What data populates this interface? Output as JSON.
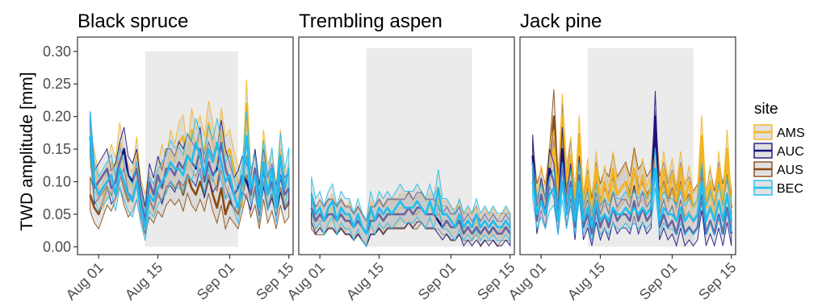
{
  "chart_data": {
    "type": "line",
    "ylabel": "TWD amplitude [mm]",
    "xlabel": "",
    "ylim": [
      -0.012,
      0.322
    ],
    "xlim": [
      "2019-07-27",
      "2019-09-16"
    ],
    "yticks": [
      0.0,
      0.05,
      0.1,
      0.15,
      0.2,
      0.25,
      0.3
    ],
    "ytick_labels": [
      "0.00",
      "0.05",
      "0.10",
      "0.15",
      "0.20",
      "0.25",
      "0.30"
    ],
    "xticks": [
      "2019-08-01",
      "2019-08-15",
      "2019-09-01",
      "2019-09-15"
    ],
    "xtick_labels": [
      "Aug 01",
      "Aug 15",
      "Sep 01",
      "Sep 15"
    ],
    "grid": false,
    "legend": {
      "title": "site",
      "position": "right",
      "entries": [
        {
          "label": "AMS",
          "color": "#F5B41E"
        },
        {
          "label": "AUC",
          "color": "#1A1382"
        },
        {
          "label": "AUS",
          "color": "#8B4A12"
        },
        {
          "label": "BEC",
          "color": "#1EBDF0"
        }
      ]
    },
    "band_fill": "#c8c8c8",
    "shade_color": "#ebebeb",
    "panels": [
      {
        "title": "Black spruce",
        "shaded_period": {
          "x": [
            "2019-08-12",
            "2019-09-03"
          ],
          "y": [
            0,
            0.3
          ]
        },
        "series": [
          {
            "name": "AMS",
            "x_start": "2019-07-30",
            "values": [
              0.15,
              0.12,
              0.09,
              0.08,
              0.1,
              0.13,
              0.11,
              0.16,
              0.12,
              0.1,
              0.09,
              0.14,
              0.08,
              0.06,
              0.09,
              0.07,
              0.1,
              0.13,
              0.11,
              0.15,
              0.13,
              0.16,
              0.17,
              0.12,
              0.18,
              0.15,
              0.17,
              0.14,
              0.19,
              0.16,
              0.12,
              0.18,
              0.14,
              0.15,
              0.12,
              0.1,
              0.08,
              0.22,
              0.09,
              0.12,
              0.07,
              0.15,
              0.1,
              0.12,
              0.07,
              0.15,
              0.09,
              0.1
            ]
          },
          {
            "name": "AUC",
            "x_start": "2019-07-30",
            "values": [
              0.17,
              0.09,
              0.1,
              0.11,
              0.12,
              0.09,
              0.1,
              0.13,
              0.15,
              0.11,
              0.1,
              0.12,
              0.07,
              0.04,
              0.1,
              0.08,
              0.11,
              0.09,
              0.12,
              0.12,
              0.11,
              0.13,
              0.12,
              0.14,
              0.13,
              0.12,
              0.15,
              0.1,
              0.13,
              0.11,
              0.12,
              0.16,
              0.12,
              0.1,
              0.08,
              0.09,
              0.11,
              0.1,
              0.08,
              0.12,
              0.07,
              0.12,
              0.08,
              0.1,
              0.07,
              0.11,
              0.08,
              0.09
            ]
          },
          {
            "name": "AUS",
            "x_start": "2019-07-30",
            "values": [
              0.08,
              0.06,
              0.05,
              0.07,
              0.09,
              0.08,
              0.1,
              0.12,
              0.09,
              0.07,
              0.08,
              0.1,
              0.06,
              0.04,
              0.07,
              0.06,
              0.08,
              0.07,
              0.09,
              0.1,
              0.09,
              0.1,
              0.08,
              0.11,
              0.09,
              0.08,
              0.1,
              0.08,
              0.11,
              0.08,
              0.06,
              0.09,
              0.05,
              0.07,
              0.06,
              0.05,
              0.08,
              0.11,
              0.07,
              0.09,
              0.05,
              0.1,
              0.06,
              0.08,
              0.05,
              0.09,
              0.06,
              0.07
            ]
          },
          {
            "name": "BEC",
            "x_start": "2019-07-30",
            "values": [
              0.17,
              0.1,
              0.08,
              0.09,
              0.1,
              0.11,
              0.08,
              0.12,
              0.1,
              0.08,
              0.07,
              0.1,
              0.06,
              0.03,
              0.08,
              0.07,
              0.09,
              0.1,
              0.11,
              0.13,
              0.12,
              0.12,
              0.11,
              0.14,
              0.13,
              0.16,
              0.14,
              0.11,
              0.15,
              0.13,
              0.16,
              0.13,
              0.1,
              0.11,
              0.08,
              0.06,
              0.1,
              0.17,
              0.09,
              0.11,
              0.06,
              0.13,
              0.08,
              0.12,
              0.06,
              0.14,
              0.09,
              0.12
            ]
          }
        ]
      },
      {
        "title": "Trembling aspen",
        "shaded_period": {
          "x": [
            "2019-08-12",
            "2019-09-06"
          ],
          "y": [
            0,
            0.305
          ]
        },
        "series": [
          {
            "name": "AMS",
            "x_start": "2019-07-30",
            "values": [
              0.06,
              0.04,
              0.05,
              0.04,
              0.05,
              0.06,
              0.04,
              0.05,
              0.04,
              0.05,
              0.03,
              0.04,
              0.03,
              0.02,
              0.05,
              0.04,
              0.05,
              0.04,
              0.05,
              0.05,
              0.05,
              0.06,
              0.06,
              0.06,
              0.05,
              0.06,
              0.06,
              0.05,
              0.06,
              0.06,
              0.07,
              0.05,
              0.05,
              0.04,
              0.04,
              0.05,
              0.03,
              0.04,
              0.03,
              0.04,
              0.03,
              0.04,
              0.03,
              0.04,
              0.03,
              0.03,
              0.04,
              0.03
            ]
          },
          {
            "name": "AUC",
            "x_start": "2019-07-30",
            "values": [
              0.06,
              0.04,
              0.05,
              0.04,
              0.05,
              0.05,
              0.04,
              0.05,
              0.04,
              0.04,
              0.03,
              0.04,
              0.03,
              0.02,
              0.04,
              0.04,
              0.05,
              0.04,
              0.05,
              0.05,
              0.05,
              0.05,
              0.05,
              0.06,
              0.05,
              0.06,
              0.06,
              0.05,
              0.05,
              0.05,
              0.04,
              0.03,
              0.04,
              0.03,
              0.03,
              0.04,
              0.02,
              0.03,
              0.02,
              0.03,
              0.02,
              0.03,
              0.02,
              0.03,
              0.02,
              0.02,
              0.03,
              0.02
            ]
          },
          {
            "name": "AUS",
            "x_start": "2019-07-30",
            "values": [
              0.05,
              0.04,
              0.04,
              0.04,
              0.05,
              0.05,
              0.04,
              0.05,
              0.04,
              0.04,
              0.03,
              0.04,
              0.03,
              0.02,
              0.04,
              0.04,
              0.05,
              0.04,
              0.05,
              0.05,
              0.05,
              0.05,
              0.05,
              0.06,
              0.05,
              0.05,
              0.06,
              0.05,
              0.05,
              0.05,
              0.05,
              0.04,
              0.04,
              0.03,
              0.03,
              0.04,
              0.03,
              0.03,
              0.03,
              0.04,
              0.02,
              0.03,
              0.03,
              0.03,
              0.02,
              0.03,
              0.03,
              0.03
            ]
          },
          {
            "name": "BEC",
            "x_start": "2019-07-30",
            "values": [
              0.08,
              0.05,
              0.06,
              0.04,
              0.06,
              0.07,
              0.04,
              0.06,
              0.05,
              0.05,
              0.03,
              0.05,
              0.03,
              0.02,
              0.06,
              0.04,
              0.06,
              0.05,
              0.06,
              0.05,
              0.06,
              0.07,
              0.06,
              0.06,
              0.06,
              0.07,
              0.06,
              0.05,
              0.07,
              0.05,
              0.09,
              0.05,
              0.05,
              0.04,
              0.03,
              0.05,
              0.03,
              0.04,
              0.03,
              0.05,
              0.03,
              0.04,
              0.03,
              0.04,
              0.03,
              0.03,
              0.04,
              0.03
            ]
          }
        ]
      },
      {
        "title": "Jack pine",
        "shaded_period": {
          "x": [
            "2019-08-12",
            "2019-09-06"
          ],
          "y": [
            0,
            0.305
          ]
        },
        "series": [
          {
            "name": "AMS",
            "x_start": "2019-07-30",
            "values": [
              0.12,
              0.06,
              0.1,
              0.07,
              0.13,
              0.15,
              0.07,
              0.2,
              0.1,
              0.14,
              0.06,
              0.17,
              0.06,
              0.11,
              0.04,
              0.12,
              0.06,
              0.1,
              0.07,
              0.12,
              0.08,
              0.09,
              0.1,
              0.07,
              0.12,
              0.08,
              0.11,
              0.07,
              0.09,
              0.14,
              0.07,
              0.12,
              0.08,
              0.11,
              0.07,
              0.12,
              0.07,
              0.1,
              0.06,
              0.07,
              0.17,
              0.06,
              0.1,
              0.05,
              0.12,
              0.06,
              0.15,
              0.05
            ]
          },
          {
            "name": "AUC",
            "x_start": "2019-07-30",
            "values": [
              0.14,
              0.04,
              0.08,
              0.05,
              0.12,
              0.1,
              0.04,
              0.15,
              0.05,
              0.1,
              0.03,
              0.11,
              0.03,
              0.05,
              0.02,
              0.06,
              0.03,
              0.05,
              0.03,
              0.06,
              0.04,
              0.05,
              0.05,
              0.04,
              0.07,
              0.04,
              0.06,
              0.04,
              0.05,
              0.2,
              0.03,
              0.05,
              0.03,
              0.04,
              0.02,
              0.05,
              0.02,
              0.03,
              0.02,
              0.03,
              0.08,
              0.02,
              0.04,
              0.02,
              0.05,
              0.02,
              0.06,
              0.02
            ]
          },
          {
            "name": "AUS",
            "x_start": "2019-07-30",
            "values": [
              0.13,
              0.07,
              0.09,
              0.07,
              0.12,
              0.2,
              0.08,
              0.18,
              0.08,
              0.13,
              0.06,
              0.14,
              0.05,
              0.09,
              0.05,
              0.1,
              0.07,
              0.09,
              0.08,
              0.11,
              0.08,
              0.09,
              0.1,
              0.08,
              0.12,
              0.09,
              0.1,
              0.08,
              0.09,
              0.17,
              0.08,
              0.1,
              0.07,
              0.09,
              0.06,
              0.1,
              0.07,
              0.08,
              0.06,
              0.07,
              0.12,
              0.06,
              0.09,
              0.06,
              0.1,
              0.07,
              0.11,
              0.06
            ]
          },
          {
            "name": "BEC",
            "x_start": "2019-07-30",
            "values": [
              0.1,
              0.05,
              0.07,
              0.05,
              0.08,
              0.09,
              0.04,
              0.1,
              0.05,
              0.09,
              0.04,
              0.1,
              0.04,
              0.06,
              0.03,
              0.07,
              0.04,
              0.05,
              0.04,
              0.06,
              0.05,
              0.05,
              0.06,
              0.05,
              0.06,
              0.05,
              0.06,
              0.05,
              0.06,
              0.12,
              0.04,
              0.06,
              0.05,
              0.05,
              0.04,
              0.06,
              0.04,
              0.05,
              0.04,
              0.05,
              0.1,
              0.04,
              0.06,
              0.04,
              0.07,
              0.04,
              0.08,
              0.04
            ]
          }
        ]
      }
    ]
  }
}
